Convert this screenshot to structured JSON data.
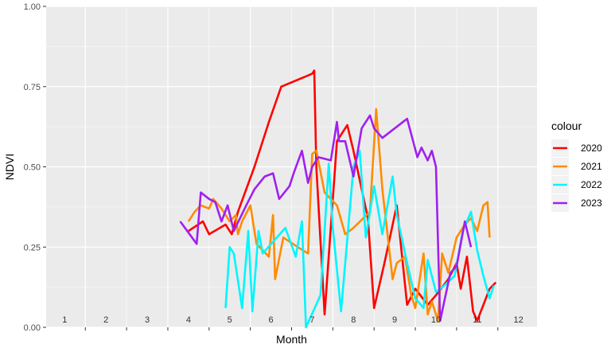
{
  "chart_data": {
    "type": "line",
    "xlabel": "Month",
    "ylabel": "NDVI",
    "ylim": [
      0,
      1
    ],
    "xlim": [
      1,
      12
    ],
    "y_ticks": [
      "0.00",
      "0.25",
      "0.50",
      "0.75",
      "1.00"
    ],
    "month_labels": [
      "1",
      "2",
      "3",
      "4",
      "5",
      "6",
      "7",
      "8",
      "9",
      "10",
      "11",
      "12"
    ],
    "legend_title": "colour",
    "legend_position": "right",
    "background": "#ebebeb",
    "grid": true,
    "series": [
      {
        "name": "2020",
        "color": "#ff0000",
        "points": [
          [
            4.0,
            0.3
          ],
          [
            4.35,
            0.33
          ],
          [
            4.5,
            0.29
          ],
          [
            4.9,
            0.32
          ],
          [
            5.05,
            0.29
          ],
          [
            5.2,
            0.36
          ],
          [
            5.6,
            0.5
          ],
          [
            5.95,
            0.64
          ],
          [
            6.25,
            0.75
          ],
          [
            7.0,
            0.79
          ],
          [
            7.05,
            0.8
          ],
          [
            7.1,
            0.5
          ],
          [
            7.3,
            0.04
          ],
          [
            7.6,
            0.58
          ],
          [
            7.7,
            0.6
          ],
          [
            7.85,
            0.63
          ],
          [
            8.0,
            0.55
          ],
          [
            8.35,
            0.34
          ],
          [
            8.5,
            0.06
          ],
          [
            8.75,
            0.2
          ],
          [
            9.05,
            0.38
          ],
          [
            9.3,
            0.07
          ],
          [
            9.5,
            0.12
          ],
          [
            9.8,
            0.07
          ],
          [
            10.0,
            0.1
          ],
          [
            10.3,
            0.15
          ],
          [
            10.5,
            0.2
          ],
          [
            10.6,
            0.12
          ],
          [
            10.75,
            0.22
          ],
          [
            10.9,
            0.05
          ],
          [
            11.0,
            0.02
          ],
          [
            11.3,
            0.12
          ],
          [
            11.45,
            0.14
          ]
        ]
      },
      {
        "name": "2021",
        "color": "#ff8c00",
        "points": [
          [
            4.0,
            0.33
          ],
          [
            4.15,
            0.36
          ],
          [
            4.3,
            0.38
          ],
          [
            4.5,
            0.37
          ],
          [
            4.6,
            0.4
          ],
          [
            4.8,
            0.37
          ],
          [
            5.0,
            0.33
          ],
          [
            5.15,
            0.35
          ],
          [
            5.2,
            0.29
          ],
          [
            5.3,
            0.33
          ],
          [
            5.5,
            0.38
          ],
          [
            5.65,
            0.26
          ],
          [
            5.95,
            0.22
          ],
          [
            6.05,
            0.35
          ],
          [
            6.1,
            0.15
          ],
          [
            6.3,
            0.28
          ],
          [
            6.65,
            0.25
          ],
          [
            6.9,
            0.23
          ],
          [
            7.0,
            0.54
          ],
          [
            7.1,
            0.55
          ],
          [
            7.3,
            0.42
          ],
          [
            7.6,
            0.38
          ],
          [
            7.8,
            0.29
          ],
          [
            8.0,
            0.31
          ],
          [
            8.4,
            0.36
          ],
          [
            8.55,
            0.68
          ],
          [
            8.7,
            0.43
          ],
          [
            8.95,
            0.15
          ],
          [
            9.05,
            0.2
          ],
          [
            9.25,
            0.22
          ],
          [
            9.4,
            0.1
          ],
          [
            9.5,
            0.06
          ],
          [
            9.7,
            0.23
          ],
          [
            9.8,
            0.04
          ],
          [
            9.9,
            0.08
          ],
          [
            10.05,
            0.02
          ],
          [
            10.15,
            0.23
          ],
          [
            10.3,
            0.17
          ],
          [
            10.5,
            0.28
          ],
          [
            10.7,
            0.32
          ],
          [
            10.85,
            0.34
          ],
          [
            11.0,
            0.3
          ],
          [
            11.15,
            0.38
          ],
          [
            11.25,
            0.39
          ],
          [
            11.3,
            0.28
          ]
        ]
      },
      {
        "name": "2022",
        "color": "#00f5ff",
        "points": [
          [
            4.9,
            0.06
          ],
          [
            5.0,
            0.25
          ],
          [
            5.1,
            0.23
          ],
          [
            5.3,
            0.06
          ],
          [
            5.45,
            0.3
          ],
          [
            5.55,
            0.05
          ],
          [
            5.7,
            0.3
          ],
          [
            5.8,
            0.23
          ],
          [
            6.35,
            0.31
          ],
          [
            6.6,
            0.22
          ],
          [
            6.75,
            0.33
          ],
          [
            6.85,
            0.0
          ],
          [
            7.2,
            0.1
          ],
          [
            7.3,
            0.3
          ],
          [
            7.4,
            0.51
          ],
          [
            7.5,
            0.31
          ],
          [
            7.7,
            0.05
          ],
          [
            8.0,
            0.5
          ],
          [
            8.15,
            0.55
          ],
          [
            8.3,
            0.28
          ],
          [
            8.5,
            0.44
          ],
          [
            8.7,
            0.29
          ],
          [
            8.95,
            0.47
          ],
          [
            9.05,
            0.35
          ],
          [
            9.3,
            0.2
          ],
          [
            9.5,
            0.09
          ],
          [
            9.7,
            0.06
          ],
          [
            9.8,
            0.21
          ],
          [
            10.0,
            0.11
          ],
          [
            10.2,
            0.13
          ],
          [
            10.45,
            0.16
          ],
          [
            10.65,
            0.3
          ],
          [
            10.85,
            0.36
          ],
          [
            11.0,
            0.24
          ],
          [
            11.15,
            0.16
          ],
          [
            11.3,
            0.09
          ],
          [
            11.4,
            0.13
          ]
        ]
      },
      {
        "name": "2023",
        "color": "#a020f0",
        "points": [
          [
            3.8,
            0.33
          ],
          [
            4.2,
            0.26
          ],
          [
            4.3,
            0.42
          ],
          [
            4.5,
            0.4
          ],
          [
            4.65,
            0.39
          ],
          [
            4.8,
            0.33
          ],
          [
            4.95,
            0.38
          ],
          [
            5.1,
            0.3
          ],
          [
            5.4,
            0.38
          ],
          [
            5.6,
            0.43
          ],
          [
            5.85,
            0.47
          ],
          [
            6.05,
            0.48
          ],
          [
            6.2,
            0.4
          ],
          [
            6.45,
            0.44
          ],
          [
            6.55,
            0.48
          ],
          [
            6.75,
            0.55
          ],
          [
            6.9,
            0.45
          ],
          [
            7.0,
            0.5
          ],
          [
            7.15,
            0.53
          ],
          [
            7.45,
            0.52
          ],
          [
            7.6,
            0.64
          ],
          [
            7.65,
            0.58
          ],
          [
            7.8,
            0.58
          ],
          [
            8.0,
            0.47
          ],
          [
            8.2,
            0.62
          ],
          [
            8.4,
            0.66
          ],
          [
            8.5,
            0.62
          ],
          [
            8.7,
            0.59
          ],
          [
            8.9,
            0.61
          ],
          [
            9.3,
            0.65
          ],
          [
            9.55,
            0.53
          ],
          [
            9.65,
            0.56
          ],
          [
            9.8,
            0.52
          ],
          [
            9.9,
            0.55
          ],
          [
            10.0,
            0.5
          ],
          [
            10.1,
            0.02
          ],
          [
            10.35,
            0.17
          ],
          [
            10.5,
            0.19
          ],
          [
            10.7,
            0.33
          ],
          [
            10.85,
            0.25
          ]
        ]
      }
    ]
  }
}
